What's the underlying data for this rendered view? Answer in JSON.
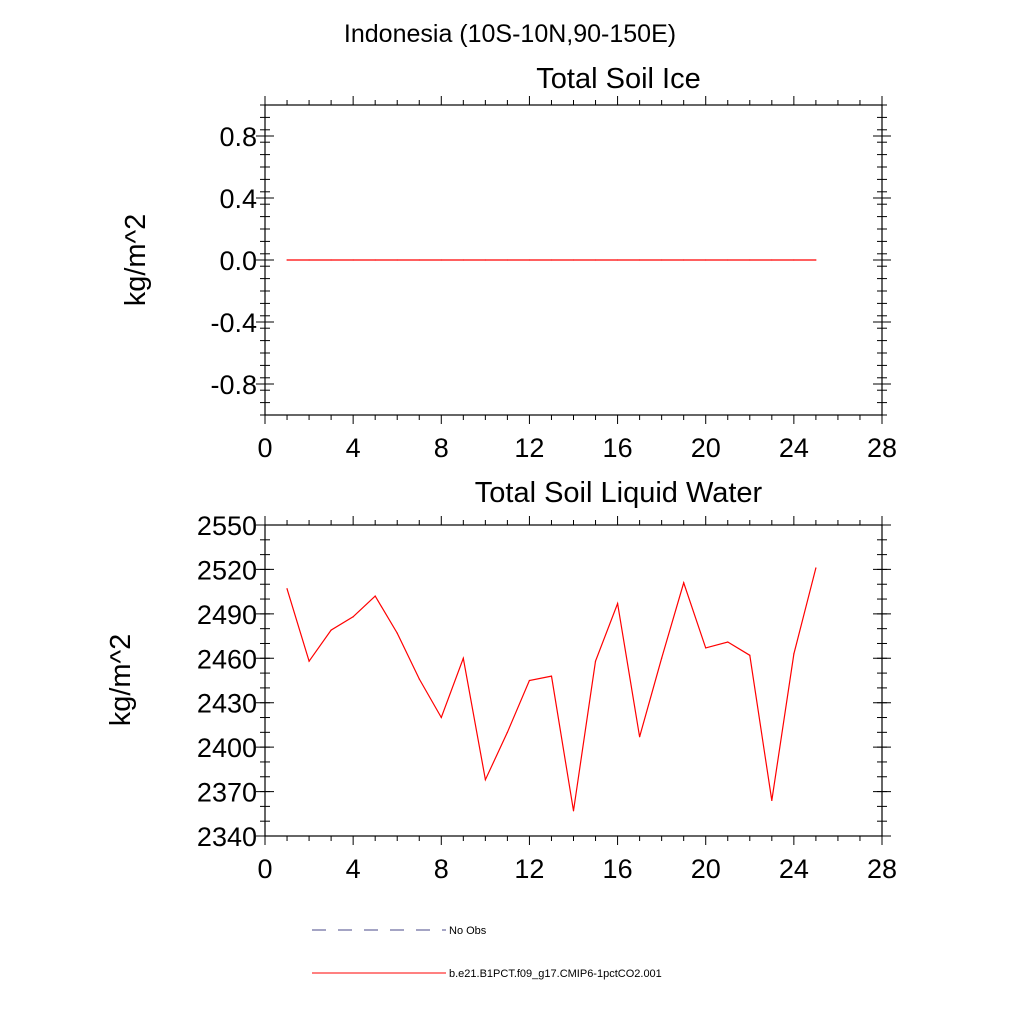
{
  "page_title": "Indonesia (10S-10N,90-150E)",
  "legend": {
    "items": [
      {
        "label": "No Obs",
        "color": "#4a4a8a",
        "dash": "dashed"
      },
      {
        "label": "b.e21.B1PCT.f09_g17.CMIP6-1pctCO2.001",
        "color": "#ff0000",
        "dash": "solid"
      }
    ]
  },
  "chart_data": [
    {
      "type": "line",
      "title": "Total Soil Ice",
      "xlabel": "",
      "ylabel": "kg/m^2",
      "xlim": [
        0,
        28
      ],
      "ylim": [
        -1.0,
        1.0
      ],
      "xticks": [
        0,
        4,
        8,
        12,
        16,
        20,
        24,
        28
      ],
      "xtick_labels": [
        "0",
        "4",
        "8",
        "12",
        "16",
        "20",
        "24",
        "28"
      ],
      "yticks": [
        0.8,
        0.4,
        0.0,
        -0.4,
        -0.8
      ],
      "ytick_labels": [
        "0.8",
        "0.4",
        "0.0",
        "-0.4",
        "-0.8"
      ],
      "series": [
        {
          "color": "#ff0000",
          "x": [
            1,
            2,
            3,
            4,
            5,
            6,
            7,
            8,
            9,
            10,
            11,
            12,
            13,
            14,
            15,
            16,
            17,
            18,
            19,
            20,
            21,
            22,
            23,
            24,
            25
          ],
          "y": [
            0,
            0,
            0,
            0,
            0,
            0,
            0,
            0,
            0,
            0,
            0,
            0,
            0,
            0,
            0,
            0,
            0,
            0,
            0,
            0,
            0,
            0,
            0,
            0,
            0
          ]
        }
      ]
    },
    {
      "type": "line",
      "title": "Total Soil Liquid Water",
      "xlabel": "",
      "ylabel": "kg/m^2",
      "xlim": [
        0,
        28
      ],
      "ylim": [
        2340,
        2550
      ],
      "xticks": [
        0,
        4,
        8,
        12,
        16,
        20,
        24,
        28
      ],
      "xtick_labels": [
        "0",
        "4",
        "8",
        "12",
        "16",
        "20",
        "24",
        "28"
      ],
      "yticks": [
        2550,
        2520,
        2490,
        2460,
        2430,
        2400,
        2370,
        2340
      ],
      "ytick_labels": [
        "2550",
        "2520",
        "2490",
        "2460",
        "2430",
        "2400",
        "2370",
        "2340"
      ],
      "series": [
        {
          "color": "#ff0000",
          "x": [
            1,
            2,
            3,
            4,
            5,
            6,
            7,
            8,
            9,
            10,
            11,
            12,
            13,
            14,
            15,
            16,
            17,
            18,
            19,
            20,
            21,
            22,
            23,
            24,
            25
          ],
          "y": [
            2507,
            2458,
            2479,
            2488,
            2502,
            2477,
            2446,
            2420,
            2460,
            2378,
            2410,
            2445,
            2448,
            2357,
            2458,
            2497,
            2407,
            2460,
            2511,
            2467,
            2471,
            2462,
            2364,
            2463,
            2521
          ]
        }
      ]
    }
  ]
}
